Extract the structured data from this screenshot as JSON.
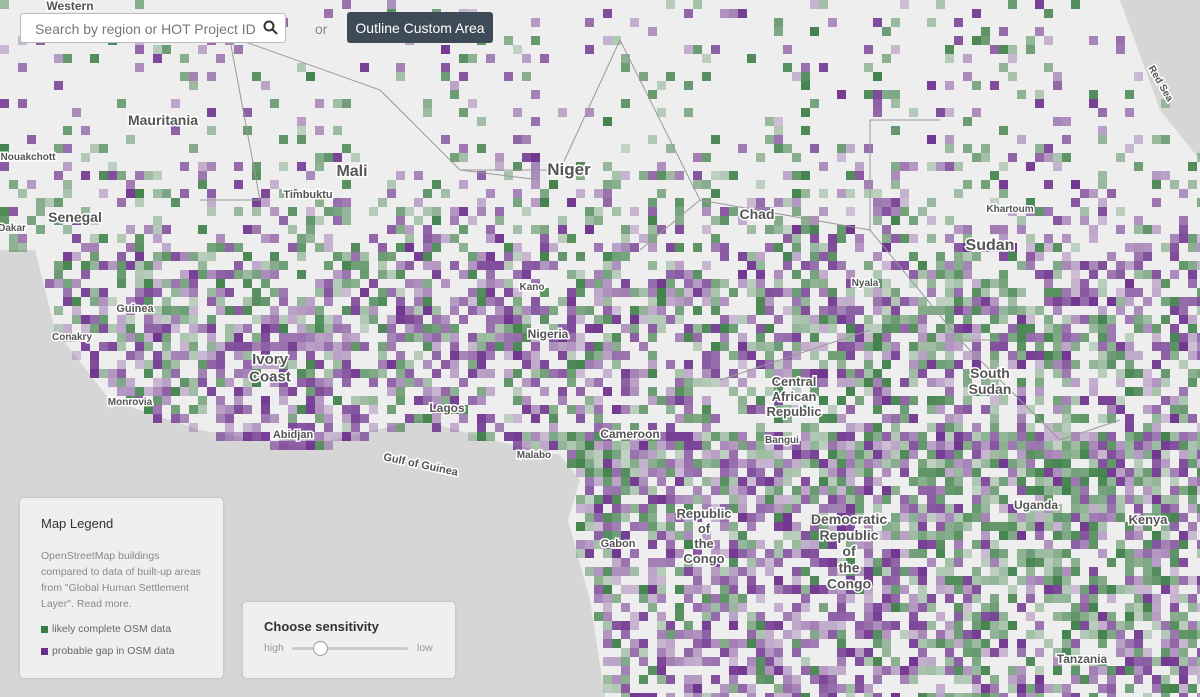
{
  "search": {
    "placeholder": "Search by region or HOT Project ID"
  },
  "separator": "or",
  "button": "Outline Custom Area",
  "map": {
    "labels": [
      [
        "Western"
      ],
      [
        "Mauritania"
      ],
      [
        "Mali"
      ],
      [
        "Niger"
      ],
      [
        "Chad"
      ],
      [
        "Sudan"
      ],
      [
        "Senegal"
      ],
      [
        "Timbuktu"
      ],
      [
        "Kano"
      ],
      [
        "Nigeria"
      ],
      [
        "Lagos"
      ],
      [
        "Abidjan"
      ],
      [
        "Ivory",
        "Coast"
      ],
      [
        "Guinea"
      ],
      [
        "Conakry"
      ],
      [
        "Monrovia"
      ],
      [
        "Gulf of Guinea"
      ],
      [
        "Malabo"
      ],
      [
        "Cameroon"
      ],
      [
        "Central",
        "African",
        "Republic"
      ],
      [
        "Republic",
        "of",
        "the",
        "Congo"
      ],
      [
        "Democratic",
        "Republic",
        "of",
        "the",
        "Congo"
      ],
      [
        "Gabon"
      ],
      [
        "South",
        "Sudan"
      ],
      [
        "Uganda"
      ],
      [
        "Kenya"
      ],
      [
        "Tanzania"
      ],
      [
        "Khartoum"
      ],
      [
        "Nyala"
      ],
      [
        "Red Sea"
      ],
      [
        "Nouakchott"
      ],
      [
        "Dakar"
      ],
      [
        "Bangui"
      ]
    ]
  },
  "legend": {
    "title": "Map Legend",
    "description": "OpenStreetMap buildings compared to data of built-up areas from \"Global Human Settlement Layer\". Read more.",
    "items": [
      "likely complete OSM data",
      "probable gap in OSM data"
    ]
  },
  "sensitivity": {
    "title": "Choose sensitivity",
    "high": "high",
    "low": "low"
  }
}
